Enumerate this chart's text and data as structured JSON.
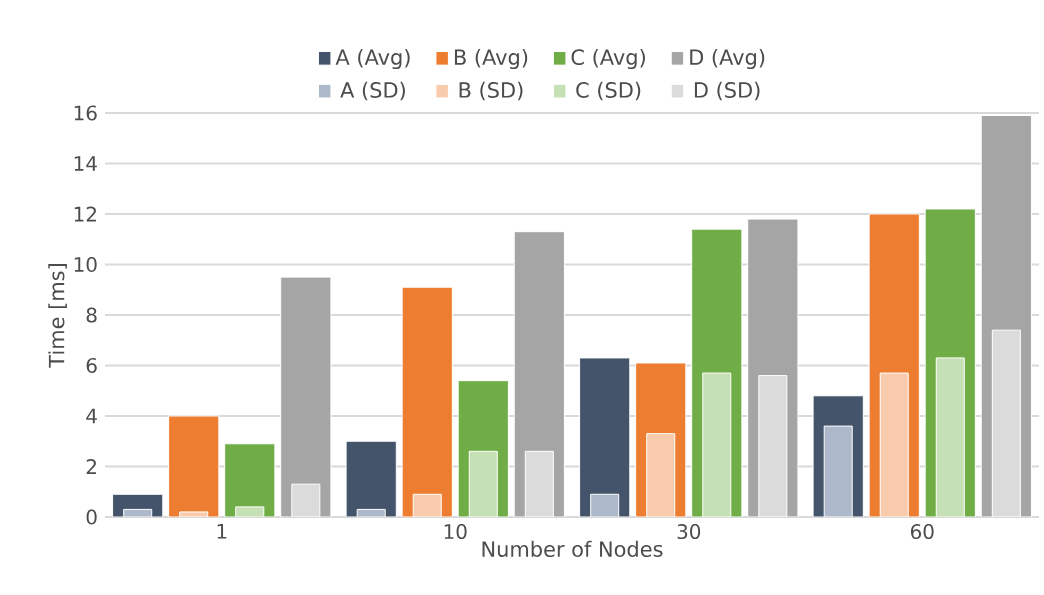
{
  "chart_data": {
    "type": "bar",
    "xlabel": "Number of Nodes",
    "ylabel": "Time [ms]",
    "categories": [
      "1",
      "10",
      "30",
      "60"
    ],
    "series": [
      {
        "name": "A (Avg)",
        "color": "#44546a",
        "values": [
          0.9,
          3.0,
          6.3,
          4.8
        ]
      },
      {
        "name": "B (Avg)",
        "color": "#ed7d31",
        "values": [
          4.0,
          9.1,
          6.1,
          12.0
        ]
      },
      {
        "name": "C (Avg)",
        "color": "#70ad47",
        "values": [
          2.9,
          5.4,
          11.4,
          12.2
        ]
      },
      {
        "name": "D (Avg)",
        "color": "#a5a5a5",
        "values": [
          9.5,
          11.3,
          11.8,
          15.9
        ]
      },
      {
        "name": "A (SD)",
        "color": "#adb9ca",
        "values": [
          0.3,
          0.3,
          0.9,
          3.6
        ]
      },
      {
        "name": "B (SD)",
        "color": "#f8cbad",
        "values": [
          0.2,
          0.9,
          3.3,
          5.7
        ]
      },
      {
        "name": "C (SD)",
        "color": "#c5e0b4",
        "values": [
          0.4,
          2.6,
          5.7,
          6.3
        ]
      },
      {
        "name": "D (SD)",
        "color": "#dbdbdb",
        "values": [
          1.3,
          2.6,
          5.6,
          7.4
        ]
      }
    ],
    "ylim": [
      0,
      16
    ],
    "yticks": [
      0,
      2,
      4,
      6,
      8,
      10,
      12,
      14,
      16
    ],
    "grid": "y",
    "legend": "top"
  }
}
